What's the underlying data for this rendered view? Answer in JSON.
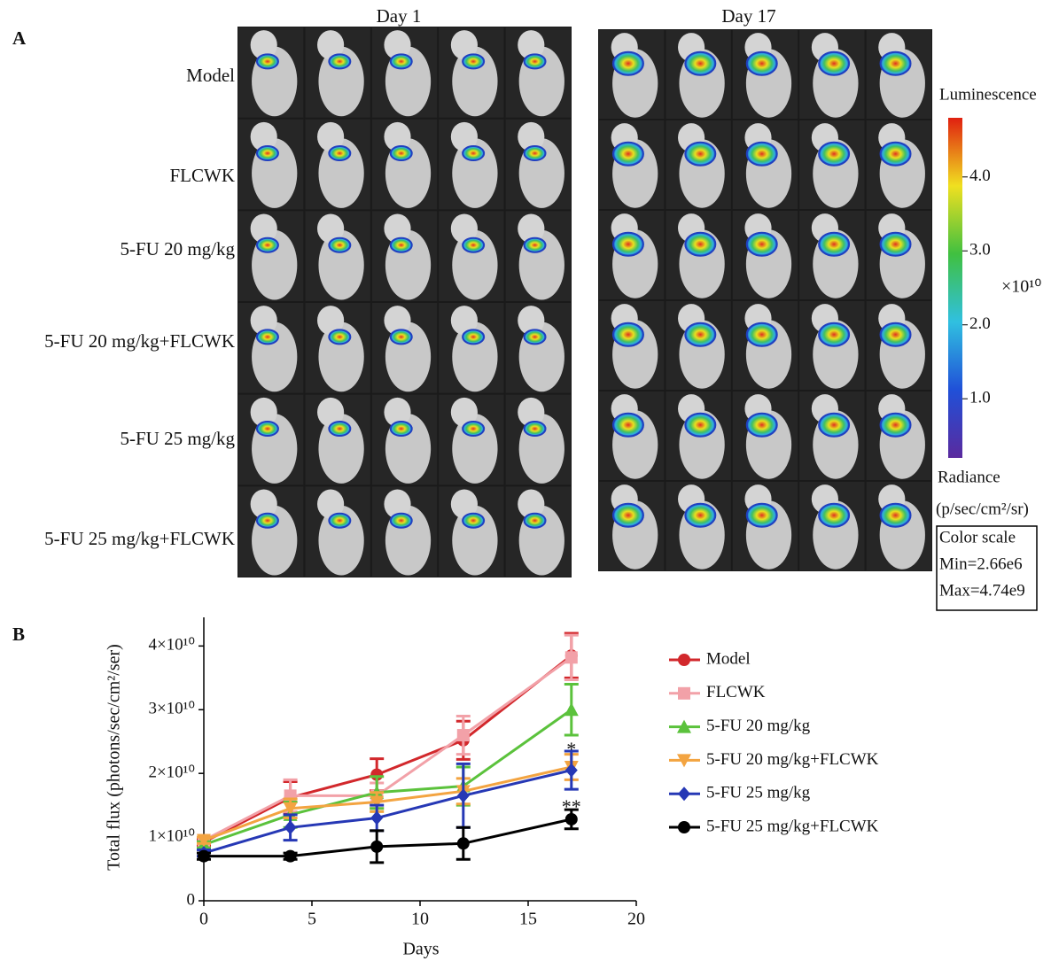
{
  "panel_a": {
    "label": "A",
    "columns": [
      "Day 1",
      "Day 17"
    ],
    "groups": [
      "Model",
      "FLCWK",
      "5-FU 20 mg/kg",
      "5-FU 20 mg/kg+FLCWK",
      "5-FU 25 mg/kg",
      "5-FU 25 mg/kg+FLCWK"
    ],
    "colorbar": {
      "title": "Luminescence",
      "lim": [
        0.2,
        4.8
      ],
      "ticks": [
        {
          "value": 4,
          "label": "4.0"
        },
        {
          "value": 3,
          "label": "3.0"
        },
        {
          "value": 2,
          "label": "2.0"
        },
        {
          "value": 1,
          "label": "1.0"
        }
      ],
      "multiplier": "×10¹⁰",
      "unit_title": "Radiance",
      "unit": "(p/sec/cm²/sr)",
      "scale_box": [
        "Color scale",
        "Min=2.66e6",
        "Max=4.74e9"
      ]
    }
  },
  "chart_data": {
    "type": "line",
    "panel_label": "B",
    "x_label": "Days",
    "y_label": "Total flux (photons/sec/cm²/ser)",
    "x": [
      0,
      4,
      8,
      12,
      17
    ],
    "xlim": [
      0,
      20
    ],
    "xticks": [
      0,
      5,
      10,
      15,
      20
    ],
    "ylim": [
      0,
      44500000000.0
    ],
    "yticks": [
      0,
      {
        "value": 10000000000.0,
        "label": "1×10¹⁰"
      },
      {
        "value": 20000000000.0,
        "label": "2×10¹⁰"
      },
      {
        "value": 30000000000.0,
        "label": "3×10¹⁰"
      },
      {
        "value": 40000000000.0,
        "label": "4×10¹⁰"
      }
    ],
    "series": [
      {
        "name": "Model",
        "color": "#d2282c",
        "marker": "circle",
        "values": [
          9200000000.0,
          16200000000.0,
          19800000000.0,
          25200000000.0,
          38500000000.0
        ],
        "errors": [
          500000000.0,
          2500000000.0,
          2500000000.0,
          3000000000.0,
          3500000000.0
        ]
      },
      {
        "name": "FLCWK",
        "color": "#f2a1a8",
        "marker": "square",
        "values": [
          9500000000.0,
          16500000000.0,
          16500000000.0,
          26000000000.0,
          38200000000.0
        ],
        "errors": [
          500000000.0,
          2500000000.0,
          2000000000.0,
          3000000000.0,
          3500000000.0
        ]
      },
      {
        "name": "5-FU 20 mg/kg",
        "color": "#5bc23c",
        "marker": "triangle",
        "values": [
          8800000000.0,
          13500000000.0,
          17000000000.0,
          18000000000.0,
          30000000000.0
        ],
        "errors": [
          500000000.0,
          2000000000.0,
          2500000000.0,
          3000000000.0,
          4000000000.0
        ]
      },
      {
        "name": "5-FU 20 mg/kg+FLCWK",
        "color": "#f3a441",
        "marker": "triangle-down",
        "values": [
          9500000000.0,
          14500000000.0,
          15500000000.0,
          17200000000.0,
          21000000000.0
        ],
        "errors": [
          500000000.0,
          1500000000.0,
          1500000000.0,
          2000000000.0,
          2000000000.0
        ]
      },
      {
        "name": "5-FU 25 mg/kg",
        "color": "#2638b5",
        "marker": "diamond",
        "values": [
          7500000000.0,
          11500000000.0,
          13000000000.0,
          16500000000.0,
          20500000000.0
        ],
        "errors": [
          500000000.0,
          2000000000.0,
          2000000000.0,
          5000000000.0,
          3000000000.0
        ]
      },
      {
        "name": "5-FU 25 mg/kg+FLCWK",
        "color": "#000000",
        "marker": "circle",
        "values": [
          7000000000.0,
          7000000000.0,
          8500000000.0,
          9000000000.0,
          12800000000.0
        ],
        "errors": [
          500000000.0,
          500000000.0,
          2500000000.0,
          2500000000.0,
          1500000000.0
        ]
      }
    ],
    "annotations": [
      "*",
      "**"
    ]
  }
}
